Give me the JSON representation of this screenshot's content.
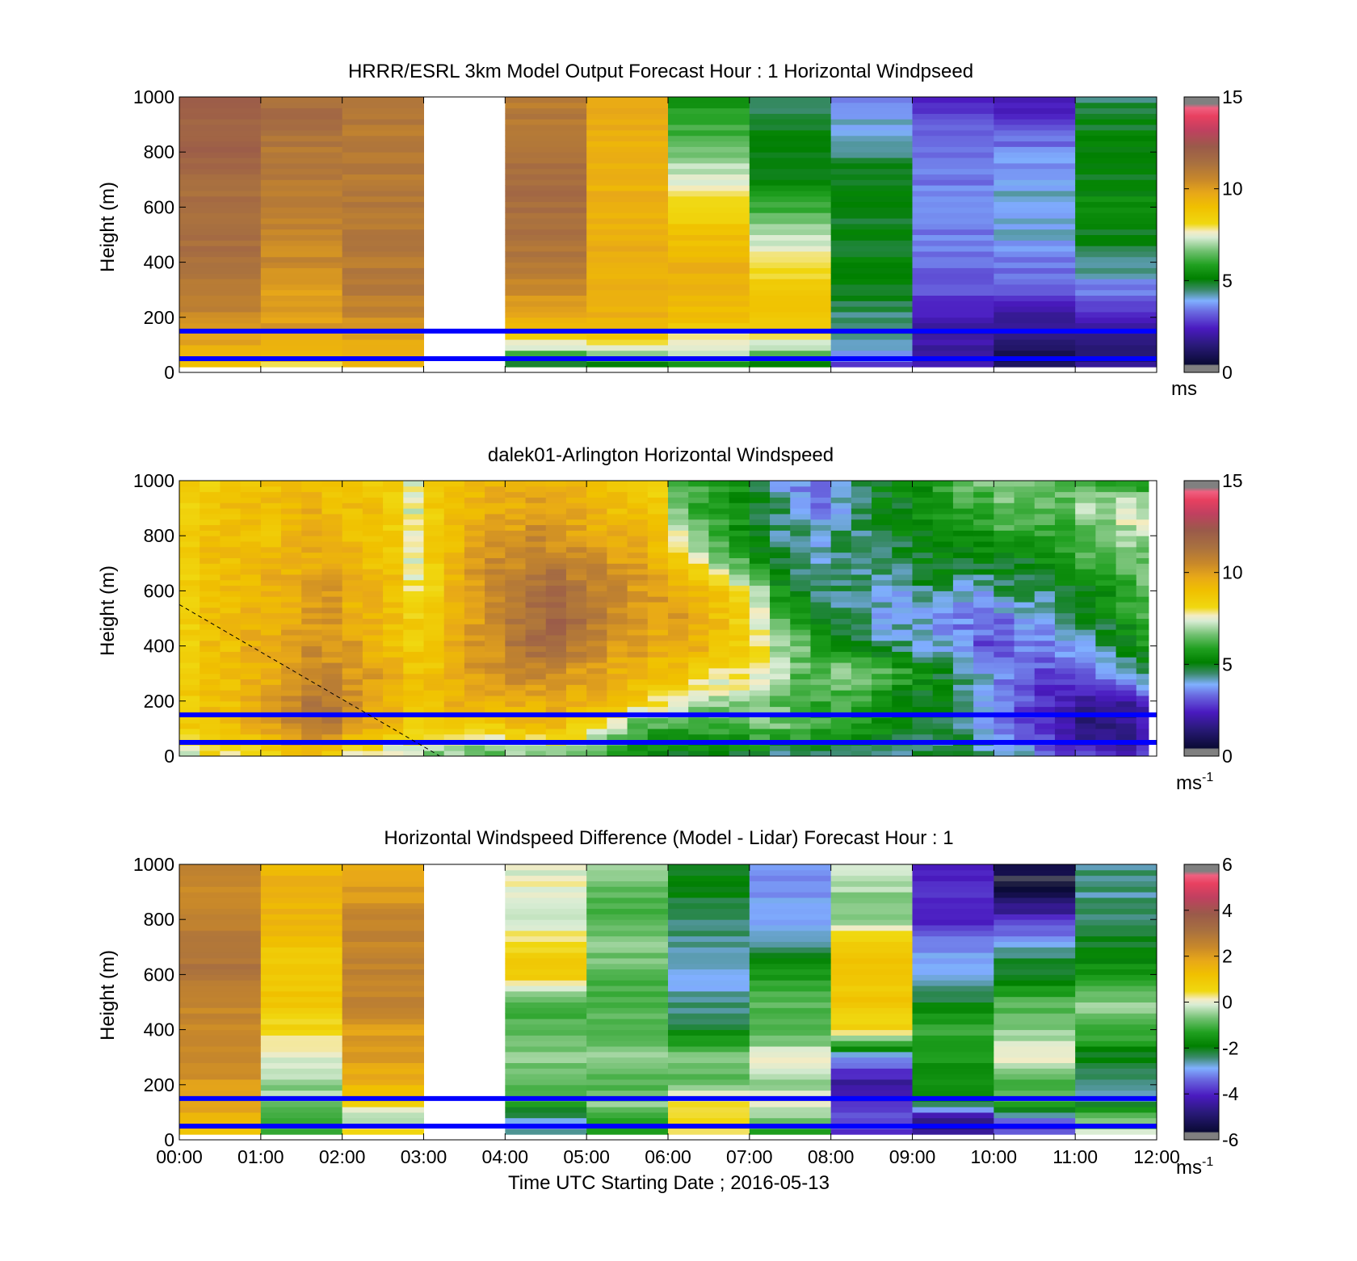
{
  "chart_data": [
    {
      "type": "heatmap",
      "title": "HRRR/ESRL 3km Model Output   Forecast Hour : 1 Horizontal Windpseed",
      "ylabel": "Height (m)",
      "ylim": [
        0,
        1000
      ],
      "yticks": [
        0,
        200,
        400,
        600,
        800,
        1000
      ],
      "xlim": [
        0,
        12
      ],
      "x_tick_labels": [],
      "colorbar": {
        "min": 0,
        "max": 15,
        "ticks": [
          0,
          5,
          10,
          15
        ],
        "unit": "ms",
        "unit_sup": ""
      },
      "colormap": "speed",
      "layout": "blocks",
      "block_hours": [
        0,
        1,
        2,
        3,
        4,
        5,
        6,
        7,
        8,
        9,
        10,
        11
      ],
      "missing_blocks": [
        3
      ],
      "height_levels": [
        20,
        50,
        80,
        150,
        200,
        300,
        400,
        500,
        600,
        700,
        800,
        900,
        1000
      ],
      "values": [
        [
          9.0,
          7.5,
          9.5,
          null,
          4.5,
          5.0,
          5.5,
          5.0,
          2.5,
          2.0,
          1.5,
          2.5
        ],
        [
          9.5,
          9.5,
          9.5,
          null,
          5.0,
          6.0,
          6.5,
          5.5,
          3.5,
          2.0,
          1.0,
          1.0
        ],
        [
          9.5,
          9.5,
          9.5,
          null,
          7.0,
          7.5,
          7.5,
          7.0,
          4.0,
          2.0,
          1.0,
          1.5
        ],
        [
          10.0,
          10.0,
          10.0,
          null,
          9.0,
          9.0,
          8.0,
          8.0,
          4.5,
          2.0,
          1.5,
          2.0
        ],
        [
          10.5,
          10.0,
          10.5,
          null,
          9.5,
          9.5,
          9.0,
          9.0,
          4.5,
          2.5,
          2.0,
          2.5
        ],
        [
          11.0,
          10.0,
          11.0,
          null,
          10.5,
          9.5,
          9.5,
          8.5,
          5.0,
          3.0,
          3.0,
          3.5
        ],
        [
          11.5,
          10.5,
          11.0,
          null,
          11.0,
          9.5,
          9.5,
          8.0,
          5.0,
          3.5,
          3.5,
          4.5
        ],
        [
          11.5,
          10.5,
          11.0,
          null,
          11.5,
          9.5,
          9.0,
          7.0,
          5.0,
          3.5,
          4.0,
          5.0
        ],
        [
          11.5,
          11.0,
          11.0,
          null,
          11.5,
          9.5,
          8.0,
          6.0,
          5.0,
          3.5,
          4.0,
          5.5
        ],
        [
          11.5,
          11.0,
          11.0,
          null,
          11.5,
          9.5,
          7.5,
          5.0,
          5.0,
          3.5,
          4.0,
          5.0
        ],
        [
          12.0,
          11.0,
          11.0,
          null,
          11.5,
          9.5,
          6.5,
          5.0,
          4.5,
          3.5,
          3.5,
          5.0
        ],
        [
          12.0,
          11.5,
          11.0,
          null,
          11.0,
          9.5,
          6.0,
          5.0,
          4.0,
          3.0,
          3.0,
          5.0
        ],
        [
          12.0,
          11.5,
          11.0,
          null,
          11.0,
          9.5,
          5.5,
          4.5,
          3.5,
          2.5,
          2.0,
          4.5
        ]
      ],
      "reference_lines_m": [
        50,
        150
      ]
    },
    {
      "type": "heatmap",
      "title": "dalek01-Arlington  Horizontal Windspeed",
      "ylabel": "Height (m)",
      "ylim": [
        0,
        1000
      ],
      "yticks": [
        0,
        200,
        400,
        600,
        800,
        1000
      ],
      "xlim": [
        0,
        12
      ],
      "x_tick_labels": [],
      "colorbar": {
        "min": 0,
        "max": 15,
        "ticks": [
          0,
          5,
          10,
          15
        ],
        "unit": "ms",
        "unit_sup": "-1"
      },
      "colormap": "speed",
      "layout": "profiles",
      "time_hours": [
        0,
        0.25,
        0.5,
        0.75,
        1,
        1.25,
        1.5,
        1.75,
        2,
        2.25,
        2.5,
        2.75,
        3,
        3.25,
        3.5,
        3.75,
        4,
        4.25,
        4.5,
        4.75,
        5,
        5.25,
        5.5,
        5.75,
        6,
        6.25,
        6.5,
        6.75,
        7,
        7.25,
        7.5,
        7.75,
        8,
        8.25,
        8.5,
        8.75,
        9,
        9.25,
        9.5,
        9.75,
        10,
        10.25,
        10.5,
        10.75,
        11,
        11.25,
        11.5,
        11.75
      ],
      "data_end_hour": 11.9,
      "height_levels": [
        0,
        100,
        200,
        300,
        400,
        500,
        600,
        700,
        800,
        900,
        1000
      ],
      "values": [
        [
          7.5,
          8.0,
          8.0,
          8.0,
          8.0,
          9.0,
          9.0,
          8.5,
          7.5,
          7.5,
          7.0,
          7.0,
          6.5,
          6.5,
          6.0,
          6.0,
          6.5,
          6.5,
          6.5,
          6.5,
          6.0,
          5.5,
          5.5,
          5.0,
          5.0,
          5.0,
          5.0,
          5.0,
          5.0,
          4.0,
          4.0,
          4.0,
          4.5,
          4.5,
          4.5,
          4.0,
          4.5,
          4.5,
          5.0,
          4.5,
          4.0,
          4.0,
          3.5,
          3.0,
          3.0,
          2.5,
          2.5,
          3.0
        ],
        [
          8.5,
          9.0,
          9.0,
          9.5,
          10.0,
          10.5,
          11.0,
          11.0,
          10.0,
          9.5,
          9.0,
          8.5,
          8.5,
          8.5,
          8.5,
          8.5,
          9.0,
          9.0,
          9.0,
          8.5,
          8.0,
          7.0,
          6.0,
          6.0,
          6.0,
          6.0,
          6.0,
          6.0,
          6.5,
          6.5,
          6.5,
          6.0,
          6.0,
          5.5,
          5.5,
          5.0,
          5.0,
          4.5,
          4.5,
          4.0,
          3.5,
          3.0,
          2.5,
          2.0,
          1.5,
          1.5,
          1.5,
          2.0
        ],
        [
          8.5,
          9.0,
          9.0,
          9.5,
          10.0,
          10.5,
          11.0,
          11.0,
          10.5,
          10.0,
          9.5,
          9.0,
          9.0,
          9.5,
          9.5,
          9.5,
          9.5,
          9.5,
          10.0,
          9.5,
          9.5,
          9.0,
          8.5,
          8.0,
          7.5,
          7.0,
          7.0,
          7.0,
          7.0,
          6.5,
          6.0,
          6.0,
          6.0,
          6.0,
          5.5,
          5.0,
          5.0,
          5.0,
          4.5,
          4.0,
          3.5,
          3.0,
          2.5,
          2.5,
          2.0,
          2.0,
          2.0,
          2.5
        ],
        [
          8.5,
          9.0,
          9.0,
          9.5,
          9.5,
          10.0,
          10.5,
          10.5,
          10.0,
          10.0,
          9.5,
          9.0,
          9.0,
          9.5,
          10.0,
          10.0,
          10.5,
          10.5,
          10.5,
          10.0,
          10.0,
          9.5,
          9.5,
          9.0,
          9.0,
          8.5,
          8.0,
          8.0,
          7.5,
          7.0,
          6.5,
          6.5,
          7.0,
          7.0,
          6.5,
          6.0,
          5.5,
          5.0,
          4.5,
          4.0,
          3.5,
          3.5,
          3.0,
          3.0,
          3.5,
          3.5,
          4.0,
          4.5
        ],
        [
          8.5,
          9.0,
          9.0,
          9.5,
          9.5,
          10.0,
          10.5,
          10.0,
          10.0,
          9.5,
          9.0,
          8.5,
          8.5,
          9.5,
          10.0,
          10.5,
          11.0,
          11.5,
          11.5,
          11.0,
          10.5,
          10.0,
          10.0,
          9.5,
          9.5,
          9.5,
          9.0,
          8.5,
          8.0,
          7.0,
          6.5,
          5.5,
          5.5,
          5.0,
          4.5,
          4.5,
          4.0,
          4.0,
          3.5,
          3.0,
          3.0,
          3.5,
          3.5,
          4.0,
          4.0,
          4.5,
          5.0,
          5.5
        ],
        [
          8.5,
          9.0,
          9.0,
          9.5,
          9.5,
          9.5,
          10.0,
          10.0,
          9.5,
          9.5,
          9.0,
          8.5,
          8.5,
          9.5,
          10.0,
          10.5,
          11.0,
          11.5,
          12.0,
          11.5,
          11.0,
          10.5,
          10.0,
          10.0,
          10.0,
          9.5,
          9.0,
          8.5,
          7.5,
          6.5,
          5.5,
          5.0,
          4.5,
          4.5,
          4.0,
          4.0,
          4.0,
          3.5,
          3.5,
          3.5,
          3.5,
          4.0,
          4.0,
          4.5,
          5.0,
          5.0,
          5.5,
          6.0
        ],
        [
          8.5,
          9.0,
          9.0,
          9.0,
          9.5,
          9.5,
          10.0,
          10.0,
          9.5,
          9.5,
          9.0,
          8.0,
          8.5,
          9.5,
          10.0,
          10.5,
          11.0,
          11.5,
          11.5,
          11.0,
          10.5,
          10.5,
          10.0,
          10.0,
          9.5,
          9.5,
          9.0,
          8.0,
          7.0,
          5.5,
          5.0,
          4.5,
          4.5,
          4.5,
          4.0,
          4.0,
          4.5,
          4.5,
          4.0,
          4.0,
          4.5,
          4.5,
          4.5,
          5.0,
          5.0,
          5.5,
          6.0,
          6.5
        ],
        [
          8.5,
          9.0,
          9.0,
          9.0,
          9.5,
          9.5,
          9.5,
          9.5,
          9.5,
          9.0,
          9.0,
          7.5,
          8.5,
          9.5,
          10.0,
          10.5,
          10.5,
          11.0,
          11.0,
          10.5,
          10.5,
          10.0,
          10.0,
          9.5,
          9.0,
          8.0,
          7.0,
          6.5,
          5.5,
          5.0,
          4.5,
          4.0,
          4.5,
          4.5,
          4.5,
          4.5,
          5.0,
          5.0,
          5.0,
          5.0,
          5.0,
          5.0,
          5.5,
          5.5,
          6.0,
          6.0,
          6.5,
          6.5
        ],
        [
          8.5,
          9.0,
          9.0,
          9.0,
          9.0,
          9.5,
          9.5,
          9.5,
          9.0,
          9.0,
          8.5,
          7.5,
          8.5,
          9.0,
          9.5,
          10.0,
          10.0,
          10.5,
          10.0,
          10.0,
          9.5,
          9.5,
          9.5,
          9.0,
          7.5,
          6.5,
          6.0,
          5.5,
          5.0,
          4.5,
          4.5,
          4.0,
          4.5,
          4.5,
          5.0,
          5.0,
          5.0,
          5.5,
          5.5,
          5.5,
          6.0,
          6.0,
          6.0,
          6.0,
          6.5,
          6.5,
          7.0,
          7.0
        ],
        [
          8.5,
          8.5,
          9.0,
          9.0,
          9.0,
          9.0,
          9.5,
          9.0,
          9.0,
          9.0,
          8.5,
          7.5,
          8.5,
          9.0,
          9.5,
          9.5,
          9.5,
          10.0,
          9.5,
          9.5,
          9.5,
          9.0,
          9.0,
          8.5,
          6.5,
          6.0,
          6.0,
          5.5,
          5.0,
          4.5,
          4.0,
          3.5,
          4.0,
          4.5,
          5.0,
          5.0,
          5.5,
          5.5,
          6.0,
          6.0,
          6.5,
          6.5,
          6.5,
          6.5,
          7.0,
          7.0,
          7.5,
          7.5
        ],
        [
          8.5,
          8.5,
          8.5,
          9.0,
          9.0,
          9.0,
          9.0,
          9.0,
          9.0,
          8.5,
          8.5,
          7.5,
          8.5,
          9.0,
          9.0,
          9.5,
          9.5,
          9.5,
          9.5,
          9.5,
          9.0,
          9.0,
          8.5,
          8.5,
          6.5,
          6.0,
          6.0,
          5.5,
          5.0,
          4.0,
          3.5,
          3.0,
          4.0,
          4.5,
          5.0,
          5.5,
          5.5,
          6.0,
          6.5,
          6.5,
          7.0,
          7.0,
          6.5,
          6.5,
          6.5,
          6.0,
          6.0,
          5.5
        ]
      ],
      "reference_lines_m": [
        50,
        150
      ],
      "dashed_line": {
        "x": [
          0,
          3.2
        ],
        "y": [
          550,
          0
        ]
      }
    },
    {
      "type": "heatmap",
      "title": "Horizontal Windspeed Difference (Model - Lidar) Forecast Hour : 1",
      "ylabel": "Height (m)",
      "xlabel": "Time UTC  Starting Date ; 2016-05-13",
      "ylim": [
        0,
        1000
      ],
      "yticks": [
        0,
        200,
        400,
        600,
        800,
        1000
      ],
      "xlim": [
        0,
        12
      ],
      "x_tick_labels": [
        "00:00",
        "01:00",
        "02:00",
        "03:00",
        "04:00",
        "05:00",
        "06:00",
        "07:00",
        "08:00",
        "09:00",
        "10:00",
        "11:00",
        "12:00"
      ],
      "colorbar": {
        "min": -6,
        "max": 6,
        "ticks": [
          -6,
          -4,
          -2,
          0,
          2,
          4,
          6
        ],
        "unit": "ms",
        "unit_sup": "-1"
      },
      "colormap": "diff",
      "layout": "blocks",
      "block_hours": [
        0,
        1,
        2,
        3,
        4,
        5,
        6,
        7,
        8,
        9,
        10,
        11
      ],
      "missing_blocks": [
        3
      ],
      "height_levels": [
        20,
        50,
        80,
        150,
        200,
        300,
        400,
        500,
        600,
        700,
        800,
        900,
        1000
      ],
      "values": [
        [
          1.0,
          -1.0,
          1.0,
          null,
          -2.5,
          -1.0,
          0.5,
          -1.5,
          -4.0,
          -4.5,
          -3.0,
          0.5
        ],
        [
          1.5,
          -1.0,
          0.0,
          null,
          -3.0,
          -1.5,
          0.5,
          -1.0,
          -3.5,
          -5.0,
          -4.0,
          -1.0
        ],
        [
          1.5,
          -1.0,
          -0.5,
          null,
          -2.5,
          -1.0,
          0.5,
          -0.5,
          -3.5,
          -4.5,
          -3.0,
          -0.5
        ],
        [
          2.0,
          -0.5,
          1.0,
          null,
          -1.0,
          -0.5,
          0.5,
          0.0,
          -4.0,
          -1.5,
          -1.0,
          -2.5
        ],
        [
          2.0,
          -0.5,
          1.5,
          null,
          -1.0,
          -1.0,
          -1.0,
          -0.5,
          -4.5,
          -1.5,
          -1.0,
          -2.5
        ],
        [
          2.5,
          0.0,
          2.0,
          null,
          -0.5,
          -0.5,
          -0.5,
          0.0,
          -3.0,
          -1.5,
          0.0,
          -2.0
        ],
        [
          2.5,
          0.5,
          2.0,
          null,
          -1.0,
          -1.0,
          -2.0,
          -1.0,
          0.5,
          -1.0,
          -0.5,
          -1.0
        ],
        [
          2.5,
          1.0,
          2.5,
          null,
          -1.0,
          -1.0,
          -2.5,
          -1.0,
          1.0,
          -2.0,
          -1.0,
          -0.5
        ],
        [
          3.0,
          1.0,
          2.5,
          null,
          1.0,
          -1.0,
          -3.0,
          -1.5,
          1.0,
          -3.0,
          -2.0,
          -1.5
        ],
        [
          3.0,
          1.0,
          2.5,
          null,
          0.5,
          -0.5,
          -2.5,
          -2.5,
          1.0,
          -3.0,
          -2.5,
          -2.0
        ],
        [
          2.5,
          1.5,
          2.5,
          null,
          0.0,
          -1.0,
          -2.5,
          -3.0,
          -0.5,
          -4.0,
          -4.0,
          -2.5
        ],
        [
          2.5,
          1.5,
          2.0,
          null,
          0.0,
          -1.0,
          -2.0,
          -3.0,
          -0.5,
          -4.0,
          -5.5,
          -2.5
        ],
        [
          2.5,
          1.5,
          1.5,
          null,
          0.0,
          -0.5,
          -2.0,
          -3.0,
          0.0,
          -4.0,
          -5.5,
          -2.5
        ]
      ],
      "reference_lines_m": [
        50,
        150
      ]
    }
  ]
}
